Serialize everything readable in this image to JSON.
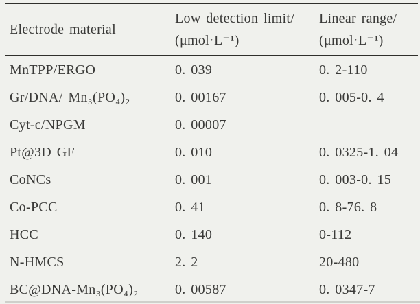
{
  "page": {
    "background_color": "#f0f1ed",
    "text_color": "#3a3a38",
    "rule_color": "#30302c"
  },
  "table": {
    "columns": [
      {
        "line1": "Electrode material",
        "line2": ""
      },
      {
        "line1": "Low detection limit/",
        "line2": "(μmol·L⁻¹)"
      },
      {
        "line1": "Linear range/",
        "line2": "(μmol·L⁻¹)"
      }
    ],
    "rows": [
      {
        "material": "MnTPP/ERGO",
        "limit": "0. 039",
        "range": "0. 2-110"
      },
      {
        "material": "Gr/DNA/ Mn₃(PO₄)₂",
        "limit": "0. 00167",
        "range": "0. 005-0. 4"
      },
      {
        "material": "Cyt-c/NPGM",
        "limit": "0. 00007",
        "range": ""
      },
      {
        "material": "Pt@3D GF",
        "limit": "0. 010",
        "range": "0. 0325-1. 04"
      },
      {
        "material": "CoNCs",
        "limit": "0. 001",
        "range": "0. 003-0. 15"
      },
      {
        "material": "Co-PCC",
        "limit": "0. 41",
        "range": "0. 8-76. 8"
      },
      {
        "material": "HCC",
        "limit": "0. 140",
        "range": "0-112"
      },
      {
        "material": "N-HMCS",
        "limit": "2. 2",
        "range": "20-480"
      },
      {
        "material": "BC@DNA-Mn₃(PO₄)₂",
        "limit": "0. 00587",
        "range": "0. 0347-7"
      }
    ]
  }
}
